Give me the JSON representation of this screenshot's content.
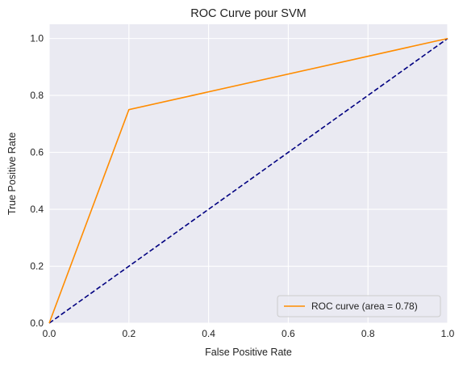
{
  "chart_data": {
    "type": "line",
    "title": "ROC Curve pour SVM",
    "xlabel": "False Positive Rate",
    "ylabel": "True Positive Rate",
    "xlim": [
      0.0,
      1.0
    ],
    "ylim": [
      0.0,
      1.05
    ],
    "xticks": [
      "0.0",
      "0.2",
      "0.4",
      "0.6",
      "0.8",
      "1.0"
    ],
    "yticks": [
      "0.0",
      "0.2",
      "0.4",
      "0.6",
      "0.8",
      "1.0"
    ],
    "grid": true,
    "legend_position": "lower-right",
    "series": [
      {
        "name": "ROC curve (area = 0.78)",
        "color": "#ff8c00",
        "style": "solid",
        "x": [
          0.0,
          0.2,
          1.0
        ],
        "y": [
          0.0,
          0.75,
          1.0
        ]
      },
      {
        "color": "#000080",
        "style": "dashed",
        "x": [
          0.0,
          1.0
        ],
        "y": [
          0.0,
          1.0
        ]
      }
    ],
    "colors": {
      "plot_background": "#eaeaf2",
      "grid": "#ffffff"
    }
  }
}
